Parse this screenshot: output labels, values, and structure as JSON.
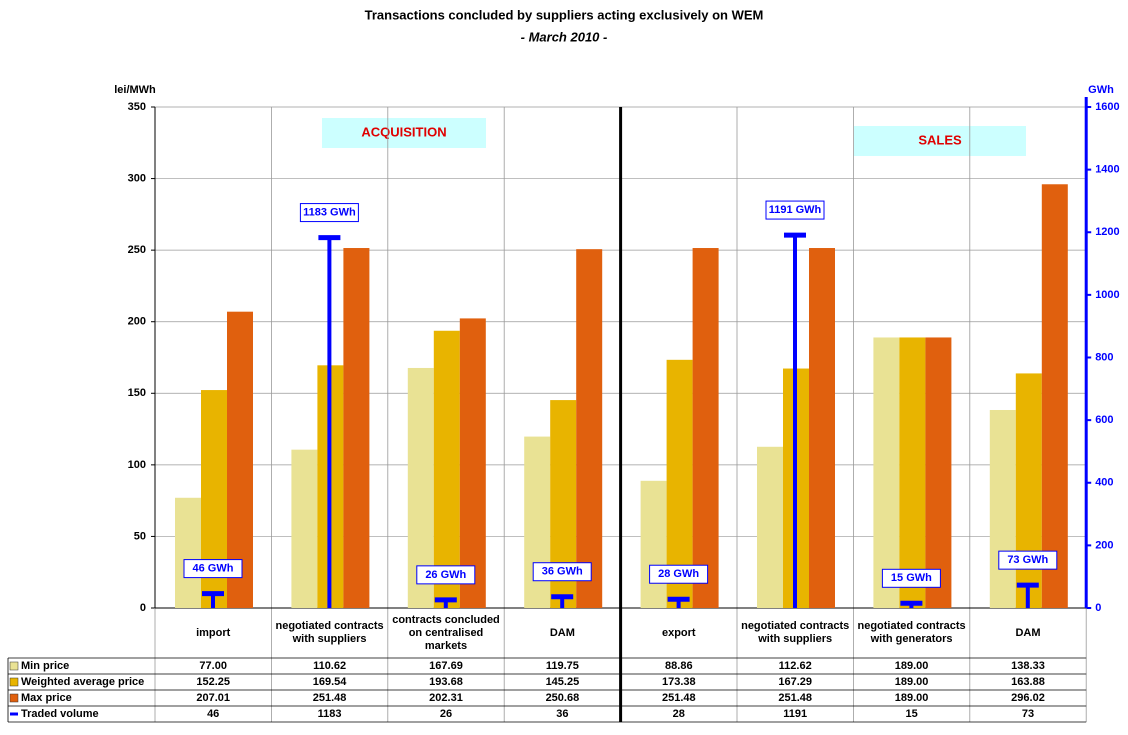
{
  "chart_data": {
    "type": "bar",
    "title": "Transactions concluded by suppliers acting exclusively on WEM",
    "subtitle": "- March 2010 -",
    "y_label": "lei/MWh",
    "y2_label": "GWh",
    "annotations": [
      "ACQUISITION",
      "SALES"
    ],
    "categories": [
      "import",
      "negotiated contracts with suppliers",
      "contracts concluded on centralised markets",
      "DAM",
      "export",
      "negotiated contracts with suppliers",
      "negotiated contracts with generators",
      "DAM"
    ],
    "ylim": [
      0,
      350
    ],
    "yticks": [
      0,
      50,
      100,
      150,
      200,
      250,
      300,
      350
    ],
    "y2lim": [
      0,
      1600
    ],
    "y2ticks": [
      0,
      200,
      400,
      600,
      800,
      1000,
      1200,
      1400,
      1600
    ],
    "grid": true,
    "series": [
      {
        "name": "Min price",
        "color": "#e9e294",
        "values": [
          77.0,
          110.62,
          167.69,
          119.75,
          88.86,
          112.62,
          189.0,
          138.33
        ],
        "value_labels": [
          "77.00",
          "110.62",
          "167.69",
          "119.75",
          "88.86",
          "112.62",
          "189.00",
          "138.33"
        ]
      },
      {
        "name": "Weighted average price",
        "color": "#e8b400",
        "values": [
          152.25,
          169.54,
          193.68,
          145.25,
          173.38,
          167.29,
          189.0,
          163.88
        ],
        "value_labels": [
          "152.25",
          "169.54",
          "193.68",
          "145.25",
          "173.38",
          "167.29",
          "189.00",
          "163.88"
        ]
      },
      {
        "name": "Max price",
        "color": "#e0600e",
        "values": [
          207.01,
          251.48,
          202.31,
          250.68,
          251.48,
          251.48,
          189.0,
          296.02
        ],
        "value_labels": [
          "207.01",
          "251.48",
          "202.31",
          "250.68",
          "251.48",
          "251.48",
          "189.00",
          "296.02"
        ]
      },
      {
        "name": "Traded volume",
        "color": "#0000ff",
        "axis": "y2",
        "values": [
          46,
          1183,
          26,
          36,
          28,
          1191,
          15,
          73
        ],
        "value_labels": [
          "46 GWh",
          "1183 GWh",
          "26 GWh",
          "36 GWh",
          "28 GWh",
          "1191 GWh",
          "15 GWh",
          "73 GWh"
        ]
      }
    ]
  }
}
